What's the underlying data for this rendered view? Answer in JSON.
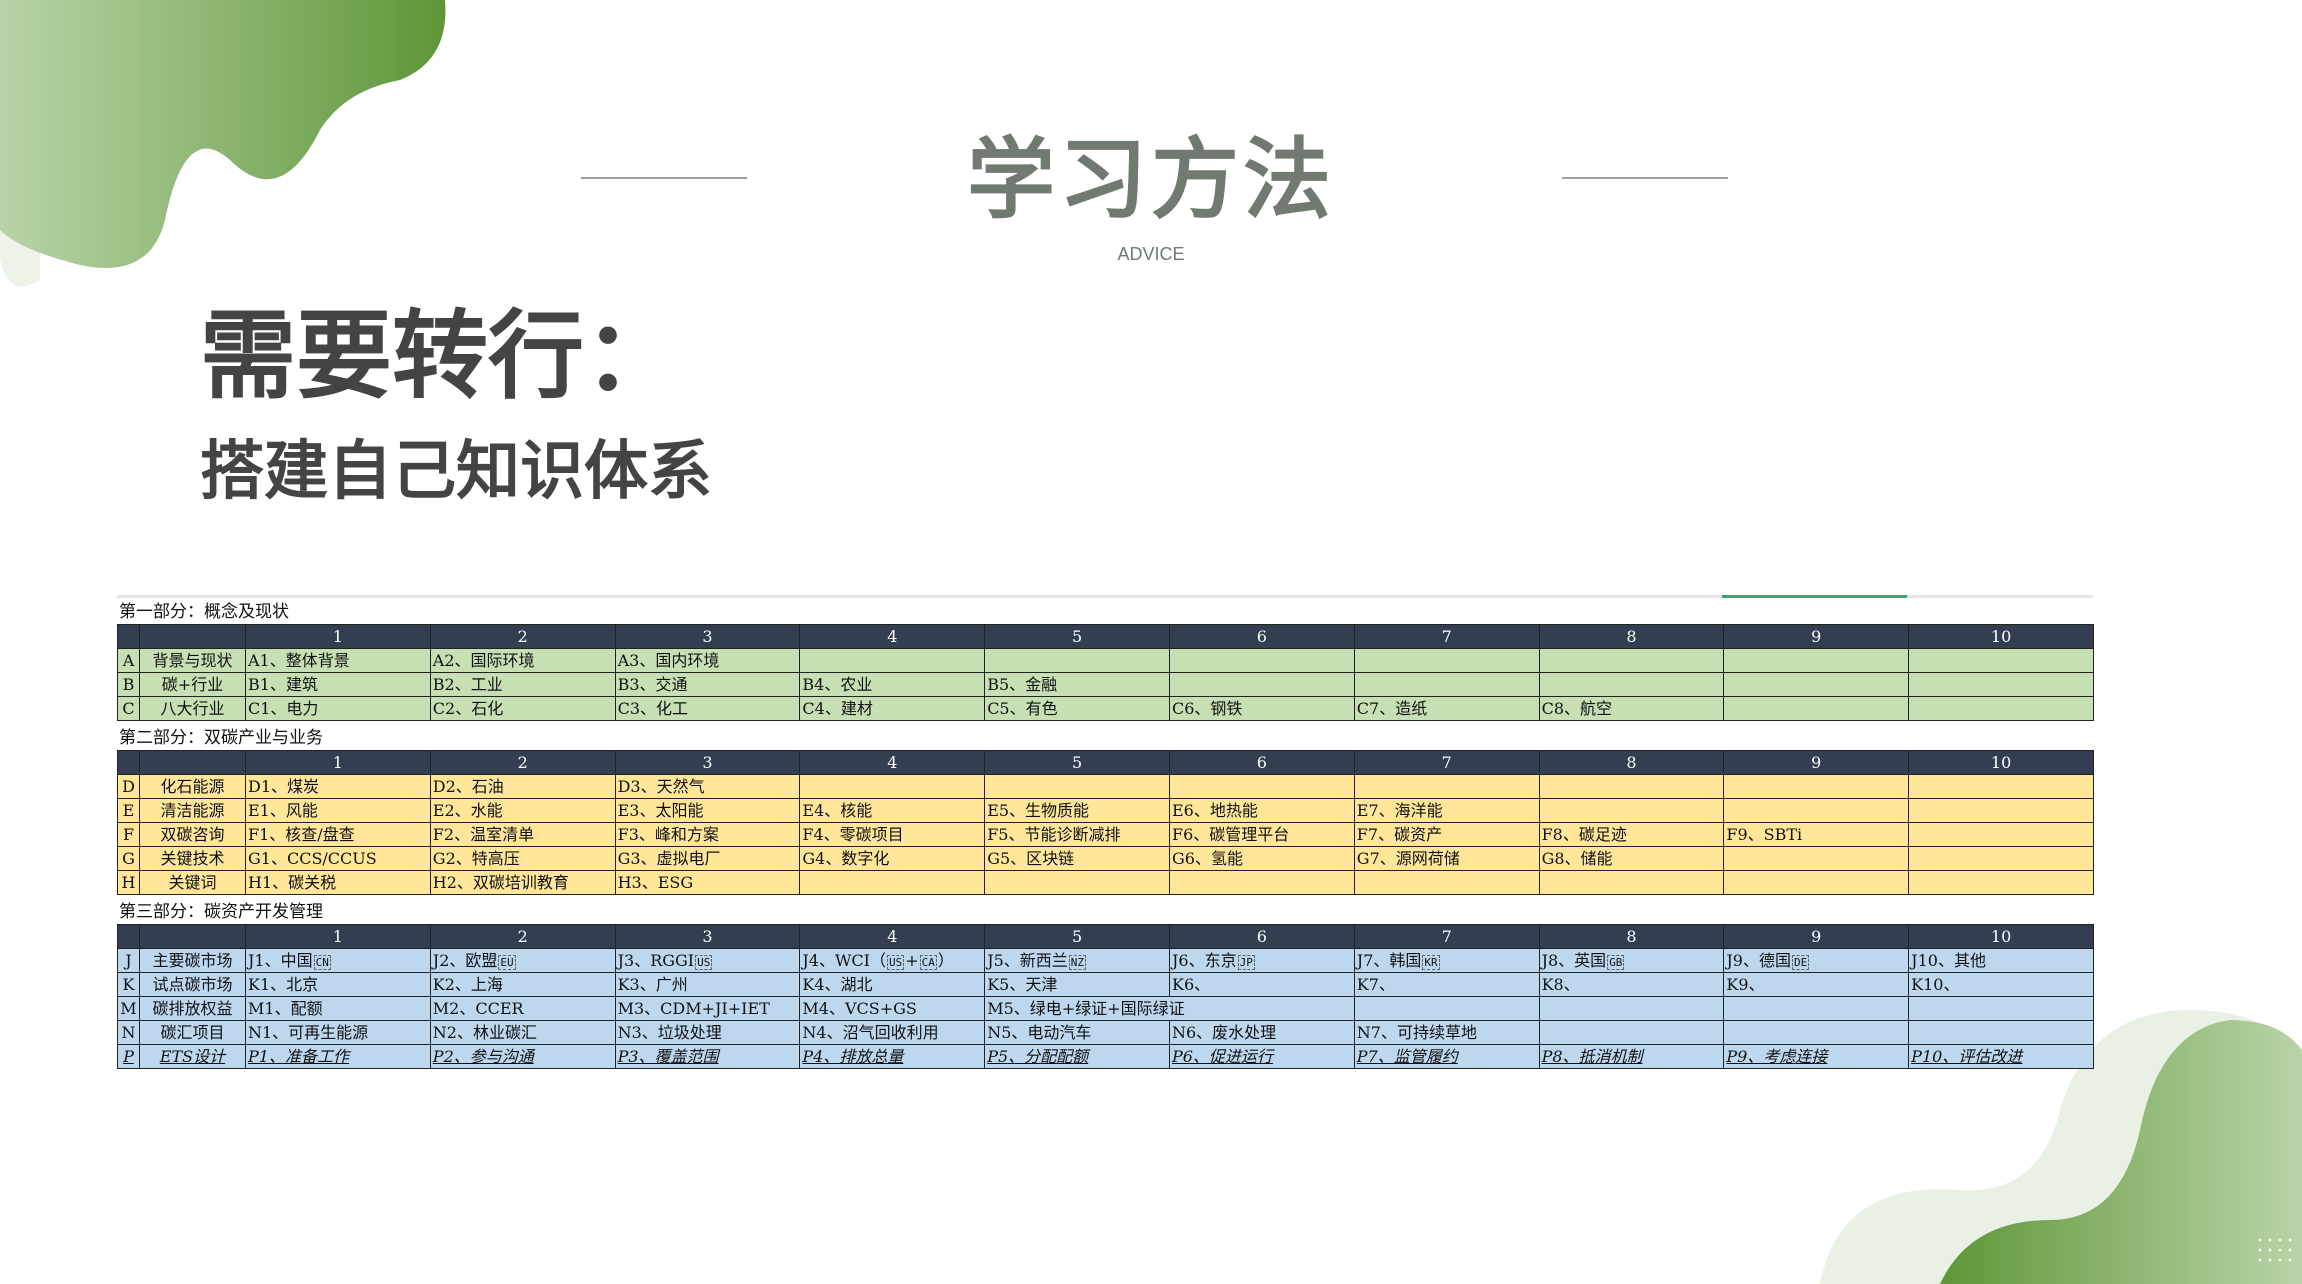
{
  "header": {
    "title": "学习方法",
    "subtitle": "ADVICE"
  },
  "headline": {
    "main": "需要转行：",
    "sub": "搭建自己知识体系"
  },
  "colors": {
    "header_row": "#333f50",
    "section1": "#c6e0b4",
    "section2": "#ffe699",
    "section3": "#bdd7ee",
    "title": "#707a70",
    "accent": "#2eaa6b",
    "decor_green": "#6a9e45"
  },
  "table": {
    "columns": [
      "1",
      "2",
      "3",
      "4",
      "5",
      "6",
      "7",
      "8",
      "9",
      "10"
    ],
    "sections": [
      {
        "title": "第一部分：概念及现状",
        "style": "green",
        "rows": [
          {
            "letter": "A",
            "name": "背景与现状",
            "cells": [
              "A1、整体背景",
              "A2、国际环境",
              "A3、国内环境",
              "",
              "",
              "",
              "",
              "",
              "",
              ""
            ]
          },
          {
            "letter": "B",
            "name": "碳+行业",
            "cells": [
              "B1、建筑",
              "B2、工业",
              "B3、交通",
              "B4、农业",
              "B5、金融",
              "",
              "",
              "",
              "",
              ""
            ]
          },
          {
            "letter": "C",
            "name": "八大行业",
            "cells": [
              "C1、电力",
              "C2、石化",
              "C3、化工",
              "C4、建材",
              "C5、有色",
              "C6、钢铁",
              "C7、造纸",
              "C8、航空",
              "",
              ""
            ]
          }
        ]
      },
      {
        "title": "第二部分：双碳产业与业务",
        "style": "yellow",
        "rows": [
          {
            "letter": "D",
            "name": "化石能源",
            "cells": [
              "D1、煤炭",
              "D2、石油",
              "D3、天然气",
              "",
              "",
              "",
              "",
              "",
              "",
              ""
            ]
          },
          {
            "letter": "E",
            "name": "清洁能源",
            "cells": [
              "E1、风能",
              "E2、水能",
              "E3、太阳能",
              "E4、核能",
              "E5、生物质能",
              "E6、地热能",
              "E7、海洋能",
              "",
              "",
              ""
            ]
          },
          {
            "letter": "F",
            "name": "双碳咨询",
            "cells": [
              "F1、核查/盘查",
              "F2、温室清单",
              "F3、峰和方案",
              "F4、零碳项目",
              "F5、节能诊断减排",
              "F6、碳管理平台",
              "F7、碳资产",
              "F8、碳足迹",
              "F9、SBTi",
              ""
            ]
          },
          {
            "letter": "G",
            "name": "关键技术",
            "cells": [
              "G1、CCS/CCUS",
              "G2、特高压",
              "G3、虚拟电厂",
              "G4、数字化",
              "G5、区块链",
              "G6、氢能",
              "G7、源网荷储",
              "G8、储能",
              "",
              ""
            ]
          },
          {
            "letter": "H",
            "name": "关键词",
            "cells": [
              "H1、碳关税",
              "H2、双碳培训教育",
              "H3、ESG",
              "",
              "",
              "",
              "",
              "",
              "",
              ""
            ]
          }
        ]
      },
      {
        "title": "第三部分：碳资产开发管理",
        "style": "blue",
        "rows": [
          {
            "letter": "J",
            "name": "主要碳市场",
            "cells": [
              "J1、中国",
              "J2、欧盟",
              "J3、RGGI",
              "J4、WCI（",
              "J5、新西兰",
              "J6、东京",
              "J7、韩国",
              "J8、英国",
              "J9、德国",
              "J10、其他"
            ],
            "flags": [
              [
                "CN"
              ],
              [
                "EU"
              ],
              [
                "US"
              ],
              [
                "US",
                "CA"
              ],
              [
                "NZ"
              ],
              [
                "JP"
              ],
              [
                "KR"
              ],
              [
                "GB"
              ],
              [
                "DE"
              ],
              []
            ],
            "tails": [
              "",
              "",
              "",
              "）",
              "",
              "",
              "",
              "",
              "",
              ""
            ]
          },
          {
            "letter": "K",
            "name": "试点碳市场",
            "cells": [
              "K1、北京",
              "K2、上海",
              "K3、广州",
              "K4、湖北",
              "K5、天津",
              "K6、",
              "K7、",
              "K8、",
              "K9、",
              "K10、"
            ]
          },
          {
            "letter": "M",
            "name": "碳排放权益",
            "cells": [
              "M1、配额",
              "M2、CCER",
              "M3、CDM+JI+IET",
              "M4、VCS+GS",
              "M5、绿电+绿证+国际绿证",
              "",
              "",
              "",
              "",
              ""
            ]
          },
          {
            "letter": "N",
            "name": "碳汇项目",
            "cells": [
              "N1、可再生能源",
              "N2、林业碳汇",
              "N3、垃圾处理",
              "N4、沼气回收利用",
              "N5、电动汽车",
              "N6、废水处理",
              "N7、可持续草地",
              "",
              "",
              ""
            ]
          },
          {
            "letter": "P",
            "name": "ETS设计",
            "italic": true,
            "cells": [
              "P1、准备工作",
              "P2、参与沟通",
              "P3、覆盖范围",
              "P4、排放总量",
              "P5、分配配额",
              "P6、促进运行",
              "P7、监管履约",
              "P8、抵消机制",
              "P9、考虑连接",
              "P10、评估改进"
            ]
          }
        ]
      }
    ]
  }
}
